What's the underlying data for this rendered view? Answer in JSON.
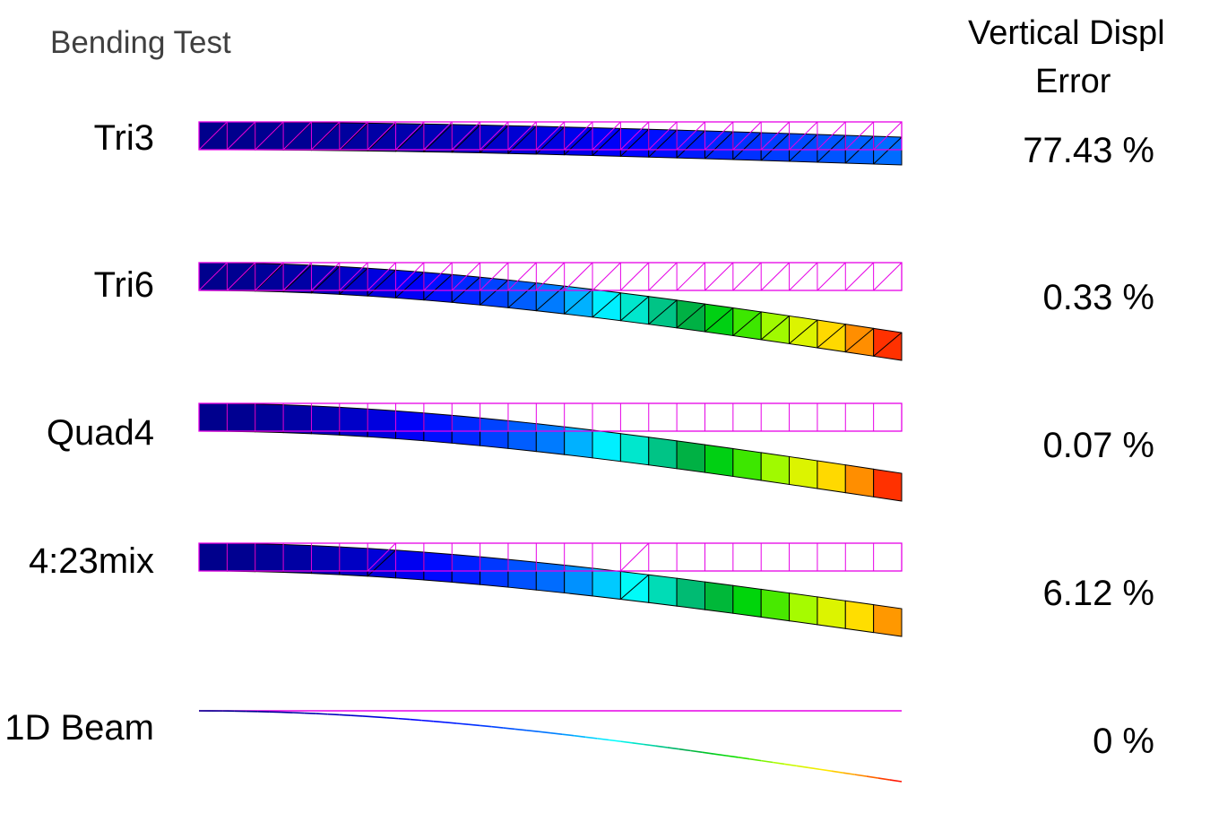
{
  "title": "Bending Test",
  "column_header": {
    "line1": "Vertical Displ",
    "line2": "Error"
  },
  "rows": [
    {
      "label": "Tri3",
      "error": "77.43 %",
      "mesh": "tri",
      "max_color_level": 0.3
    },
    {
      "label": "Tri6",
      "error": "0.33 %",
      "mesh": "tri",
      "max_color_level": 1.0
    },
    {
      "label": "Quad4",
      "error": "0.07 %",
      "mesh": "quad",
      "max_color_level": 1.0
    },
    {
      "label": "4:23mix",
      "error": "6.12 %",
      "mesh": "mix",
      "max_color_level": 0.93
    },
    {
      "label": "1D Beam",
      "error": "0 %",
      "mesh": "line",
      "max_color_level": 1.0
    }
  ],
  "colors": {
    "undeformed_outline": "#e600e6",
    "element_edge": "#000000"
  },
  "colormap": "blue-cyan-green-yellow-red"
}
